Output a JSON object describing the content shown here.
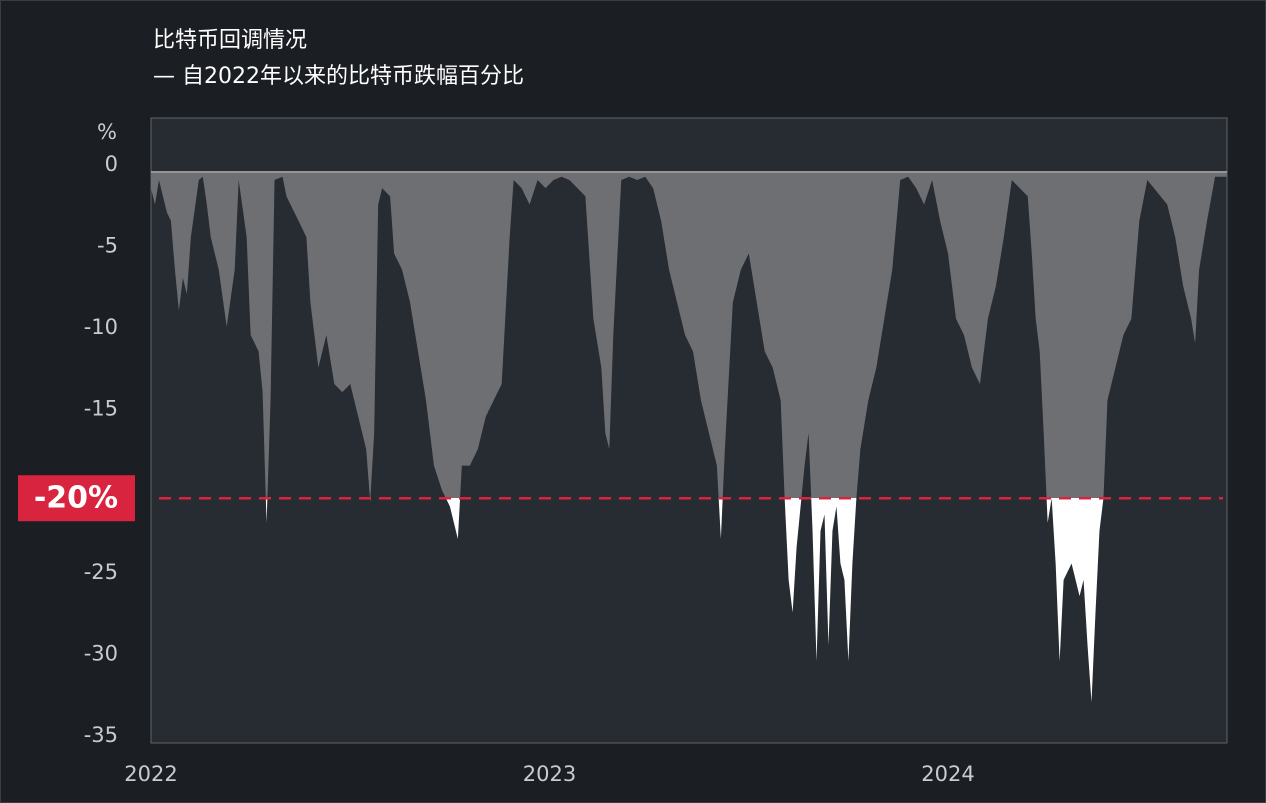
{
  "chart_data": {
    "type": "area",
    "title": "比特币回调情况",
    "subtitle": "— 自2022年以来的比特币跌幅百分比",
    "y_unit": "%",
    "x": [
      2022.0,
      2022.01,
      2022.02,
      2022.03,
      2022.04,
      2022.05,
      2022.06,
      2022.07,
      2022.08,
      2022.09,
      2022.1,
      2022.12,
      2022.13,
      2022.14,
      2022.15,
      2022.17,
      2022.19,
      2022.21,
      2022.22,
      2022.24,
      2022.25,
      2022.27,
      2022.28,
      2022.29,
      2022.3,
      2022.31,
      2022.33,
      2022.34,
      2022.35,
      2022.37,
      2022.39,
      2022.4,
      2022.42,
      2022.44,
      2022.46,
      2022.48,
      2022.5,
      2022.52,
      2022.54,
      2022.55,
      2022.56,
      2022.57,
      2022.58,
      2022.6,
      2022.61,
      2022.63,
      2022.65,
      2022.67,
      2022.69,
      2022.71,
      2022.73,
      2022.75,
      2022.77,
      2022.78,
      2022.8,
      2022.82,
      2022.84,
      2022.86,
      2022.88,
      2022.9,
      2022.91,
      2022.93,
      2022.95,
      2022.97,
      2022.99,
      2023.01,
      2023.03,
      2023.05,
      2023.07,
      2023.09,
      2023.11,
      2023.13,
      2023.14,
      2023.15,
      2023.16,
      2023.18,
      2023.2,
      2023.22,
      2023.24,
      2023.26,
      2023.28,
      2023.3,
      2023.32,
      2023.34,
      2023.36,
      2023.38,
      2023.4,
      2023.42,
      2023.43,
      2023.44,
      2023.46,
      2023.48,
      2023.5,
      2023.52,
      2023.54,
      2023.56,
      2023.58,
      2023.59,
      2023.6,
      2023.61,
      2023.62,
      2023.64,
      2023.65,
      2023.66,
      2023.67,
      2023.68,
      2023.69,
      2023.7,
      2023.71,
      2023.72,
      2023.73,
      2023.74,
      2023.75,
      2023.76,
      2023.77,
      2023.78,
      2023.8,
      2023.82,
      2023.84,
      2023.86,
      2023.88,
      2023.9,
      2023.92,
      2023.94,
      2023.96,
      2023.98,
      2024.0,
      2024.02,
      2024.04,
      2024.06,
      2024.08,
      2024.1,
      2024.12,
      2024.14,
      2024.16,
      2024.18,
      2024.2,
      2024.21,
      2024.22,
      2024.23,
      2024.24,
      2024.25,
      2024.26,
      2024.27,
      2024.28,
      2024.29,
      2024.31,
      2024.33,
      2024.34,
      2024.35,
      2024.36,
      2024.37,
      2024.38,
      2024.39,
      2024.4,
      2024.42,
      2024.44,
      2024.46,
      2024.48,
      2024.5,
      2024.55,
      2024.57,
      2024.59,
      2024.61,
      2024.62,
      2024.63,
      2024.65,
      2024.67,
      2024.7
    ],
    "values": [
      -1,
      -2,
      -0.5,
      -1.5,
      -2.5,
      -3,
      -6,
      -8.5,
      -6.5,
      -7.5,
      -4,
      -0.5,
      -0.3,
      -2,
      -4,
      -6,
      -9.5,
      -6,
      -0.5,
      -4,
      -10,
      -11,
      -13.5,
      -21.5,
      -14,
      -0.5,
      -0.3,
      -1.5,
      -2,
      -3,
      -4,
      -8,
      -12,
      -10,
      -13,
      -13.5,
      -13,
      -15,
      -17,
      -20.2,
      -16,
      -2,
      -1,
      -1.5,
      -5,
      -6,
      -8,
      -11,
      -14,
      -18,
      -19.5,
      -20.5,
      -22.5,
      -18,
      -18,
      -17,
      -15,
      -14,
      -13,
      -4,
      -0.5,
      -1,
      -2,
      -0.5,
      -1,
      -0.5,
      -0.3,
      -0.5,
      -1,
      -1.5,
      -9,
      -12,
      -16,
      -17,
      -10,
      -0.5,
      -0.3,
      -0.5,
      -0.3,
      -1,
      -3,
      -6,
      -8,
      -10,
      -11,
      -14,
      -16,
      -18,
      -22.5,
      -17,
      -8,
      -6,
      -5,
      -8,
      -11,
      -12,
      -14,
      -20,
      -25,
      -27,
      -23,
      -18,
      -16,
      -22,
      -30,
      -22,
      -21,
      -29,
      -22,
      -20.5,
      -24,
      -25,
      -30,
      -24,
      -20,
      -17,
      -14,
      -12,
      -9,
      -6,
      -0.5,
      -0.3,
      -1,
      -2,
      -0.5,
      -3,
      -5,
      -9,
      -10,
      -12,
      -13,
      -9,
      -7,
      -4,
      -0.5,
      -1,
      -1.5,
      -5,
      -9,
      -11,
      -16,
      -21.5,
      -20,
      -24,
      -30,
      -25,
      -24,
      -26,
      -25,
      -29,
      -32.5,
      -27,
      -22,
      -20,
      -14,
      -12,
      -10,
      -9,
      -3,
      -0.5,
      -2,
      -4,
      -7,
      -9,
      -10.5,
      -6,
      -3,
      -0.3,
      -0.3
    ],
    "color": "#6d6f73",
    "highlight_color": "#ffffff",
    "xlim": [
      2022,
      2024.7
    ],
    "xticks": [
      2022,
      2023,
      2024
    ],
    "ylim": [
      -35,
      3.3
    ],
    "yticks": [
      0,
      -5,
      -10,
      -15,
      -25,
      -30,
      -35
    ],
    "threshold": {
      "value": -20,
      "label": "-20%",
      "color": "#d8243f"
    }
  }
}
